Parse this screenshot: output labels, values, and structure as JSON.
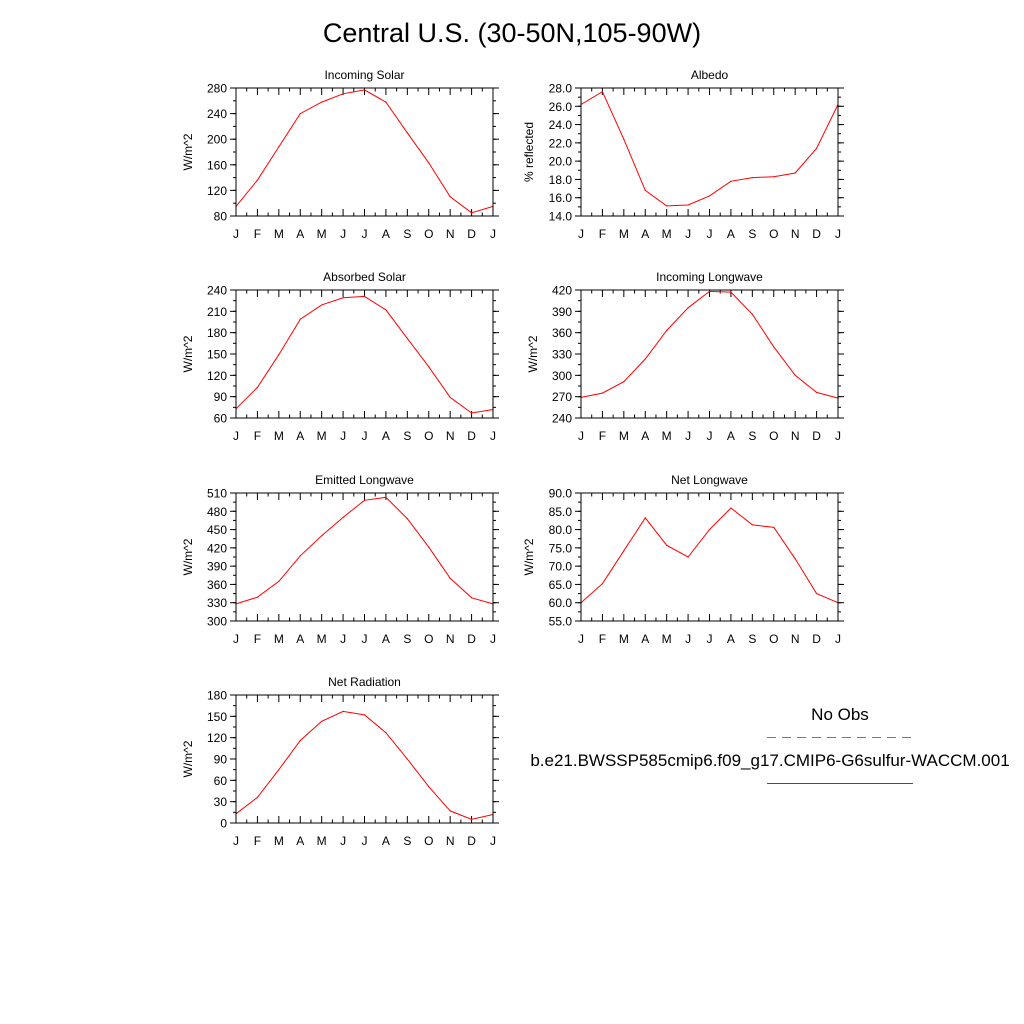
{
  "title": "Central U.S. (30-50N,105-90W)",
  "legend": {
    "obs_label": "No Obs",
    "obs_color": "#6666ff",
    "case_label": "b.e21.BWSSP585cmip6.f09_g17.CMIP6-G6sulfur-WACCM.001",
    "case_color": "#ff0000"
  },
  "months": [
    "J",
    "F",
    "M",
    "A",
    "M",
    "J",
    "J",
    "A",
    "S",
    "O",
    "N",
    "D",
    "J"
  ],
  "chart_data": [
    {
      "type": "line",
      "title": "Incoming Solar",
      "ylabel": "W/m^2",
      "ylim": [
        80,
        280
      ],
      "yticks": [
        "80",
        "120",
        "160",
        "200",
        "240",
        "280"
      ],
      "y_minor_step": 20,
      "series": [
        {
          "name": "b.e21.BWSSP585cmip6.f09_g17.CMIP6-G6sulfur-WACCM.001",
          "values": [
            95,
            136,
            188,
            240,
            258,
            271,
            277,
            258,
            210,
            163,
            110,
            85,
            95
          ]
        }
      ]
    },
    {
      "type": "line",
      "title": "Albedo",
      "ylabel": "% reflected",
      "ylim": [
        14.0,
        28.0
      ],
      "yticks": [
        "14.0",
        "16.0",
        "18.0",
        "20.0",
        "22.0",
        "24.0",
        "26.0",
        "28.0"
      ],
      "y_minor_step": 1,
      "series": [
        {
          "name": "b.e21.BWSSP585cmip6.f09_g17.CMIP6-G6sulfur-WACCM.001",
          "values": [
            26.2,
            27.6,
            22.4,
            16.8,
            15.1,
            15.2,
            16.2,
            17.8,
            18.2,
            18.3,
            18.7,
            21.4,
            26.2
          ]
        }
      ]
    },
    {
      "type": "line",
      "title": "Absorbed Solar",
      "ylabel": "W/m^2",
      "ylim": [
        60,
        240
      ],
      "yticks": [
        "60",
        "90",
        "120",
        "150",
        "180",
        "210",
        "240"
      ],
      "y_minor_step": 15,
      "series": [
        {
          "name": "b.e21.BWSSP585cmip6.f09_g17.CMIP6-G6sulfur-WACCM.001",
          "values": [
            73,
            103,
            149,
            199,
            219,
            229,
            231,
            212,
            172,
            132,
            89,
            67,
            72
          ]
        }
      ]
    },
    {
      "type": "line",
      "title": "Incoming Longwave",
      "ylabel": "W/m^2",
      "ylim": [
        240,
        420
      ],
      "yticks": [
        "240",
        "270",
        "300",
        "330",
        "360",
        "390",
        "420"
      ],
      "y_minor_step": 15,
      "series": [
        {
          "name": "b.e21.BWSSP585cmip6.f09_g17.CMIP6-G6sulfur-WACCM.001",
          "values": [
            269,
            275,
            291,
            323,
            363,
            395,
            418,
            417,
            386,
            340,
            300,
            276,
            268
          ]
        }
      ]
    },
    {
      "type": "line",
      "title": "Emitted Longwave",
      "ylabel": "W/m^2",
      "ylim": [
        300,
        510
      ],
      "yticks": [
        "300",
        "330",
        "360",
        "390",
        "420",
        "450",
        "480",
        "510"
      ],
      "y_minor_step": 15,
      "series": [
        {
          "name": "b.e21.BWSSP585cmip6.f09_g17.CMIP6-G6sulfur-WACCM.001",
          "values": [
            328,
            339,
            365,
            407,
            440,
            470,
            498,
            503,
            468,
            421,
            370,
            338,
            328
          ]
        }
      ]
    },
    {
      "type": "line",
      "title": "Net Longwave",
      "ylabel": "W/m^2",
      "ylim": [
        55.0,
        90.0
      ],
      "yticks": [
        "55.0",
        "60.0",
        "65.0",
        "70.0",
        "75.0",
        "80.0",
        "85.0",
        "90.0"
      ],
      "y_minor_step": 2.5,
      "series": [
        {
          "name": "b.e21.BWSSP585cmip6.f09_g17.CMIP6-G6sulfur-WACCM.001",
          "values": [
            60.0,
            65.2,
            74.2,
            83.2,
            75.7,
            72.5,
            80.0,
            85.9,
            81.3,
            80.6,
            72.0,
            62.5,
            60.0
          ]
        }
      ]
    },
    {
      "type": "line",
      "title": "Net Radiation",
      "ylabel": "W/m^2",
      "ylim": [
        0,
        180
      ],
      "yticks": [
        "0",
        "30",
        "60",
        "90",
        "120",
        "150",
        "180"
      ],
      "y_minor_step": 15,
      "series": [
        {
          "name": "b.e21.BWSSP585cmip6.f09_g17.CMIP6-G6sulfur-WACCM.001",
          "values": [
            13,
            36,
            75,
            116,
            143,
            157,
            152,
            127,
            90,
            51,
            17,
            5,
            12
          ]
        }
      ]
    }
  ]
}
